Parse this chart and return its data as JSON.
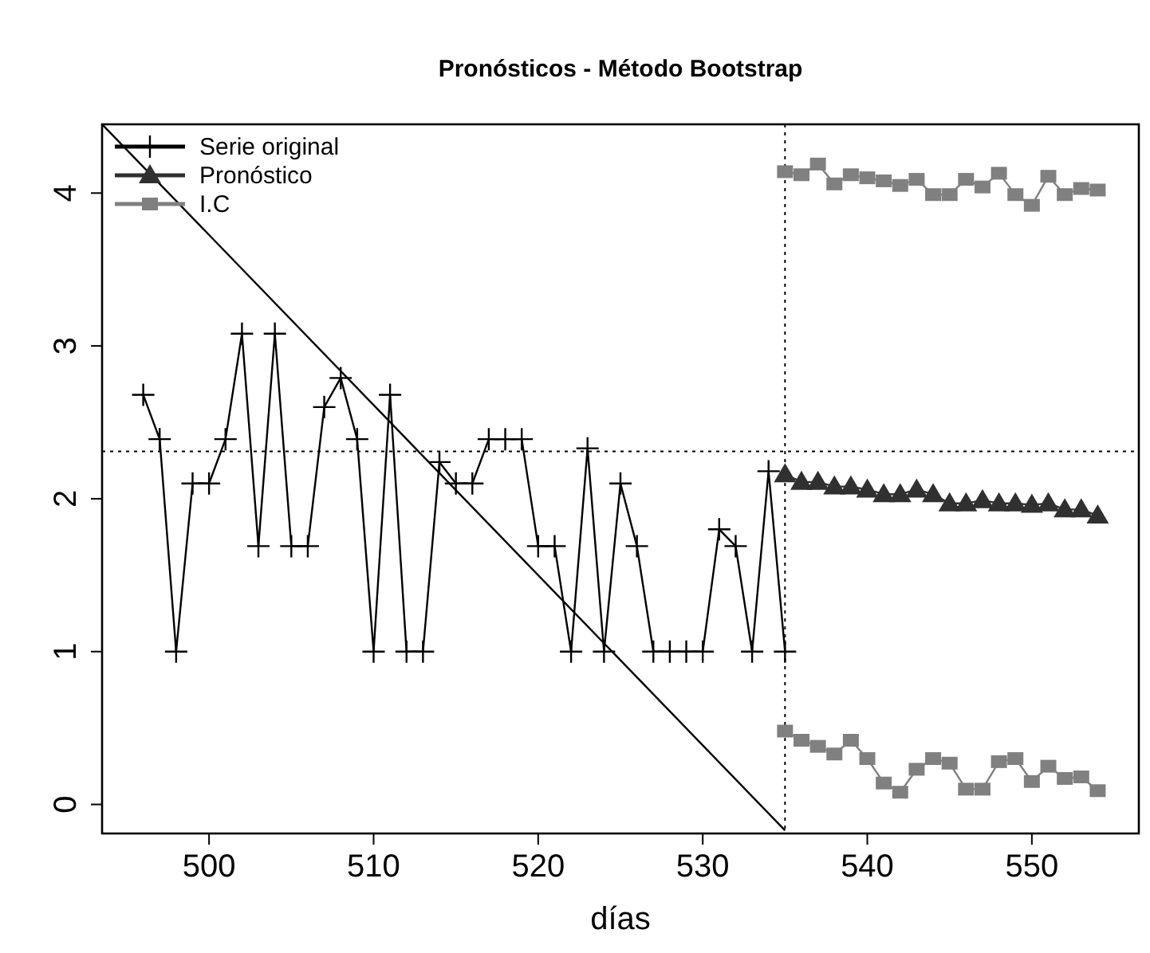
{
  "chart_data": {
    "type": "line",
    "title": "Pronósticos - Método Bootstrap",
    "xlabel": "días",
    "xlim": [
      493.5,
      556.5
    ],
    "ylim": [
      -0.19,
      4.45
    ],
    "xticks": [
      500,
      510,
      520,
      530,
      540,
      550
    ],
    "yticks": [
      0,
      1,
      2,
      3,
      4
    ],
    "grid": false,
    "legend": "top left",
    "ref_lines": [
      {
        "axis": "y",
        "value": 2.31,
        "line_style": "dotted",
        "color": "#000000"
      },
      {
        "axis": "x",
        "value": 535,
        "line_style": "dotted",
        "color": "#000000"
      }
    ],
    "series": [
      {
        "name": "Serie original",
        "color": "#000000",
        "marker": "cross",
        "x": [
          496,
          497,
          498,
          499,
          500,
          501,
          502,
          503,
          504,
          505,
          506,
          507,
          508,
          509,
          510,
          511,
          512,
          513,
          514,
          515,
          516,
          517,
          518,
          519,
          520,
          521,
          522,
          523,
          524,
          525,
          526,
          527,
          528,
          529,
          530,
          531,
          532,
          533,
          534,
          535
        ],
        "values": [
          2.68,
          2.39,
          1.0,
          2.1,
          2.1,
          2.39,
          3.08,
          1.69,
          3.08,
          1.69,
          1.69,
          2.6,
          2.79,
          2.39,
          1.0,
          2.68,
          1.0,
          1.0,
          2.24,
          2.1,
          2.1,
          2.39,
          2.39,
          2.39,
          1.69,
          1.69,
          1.0,
          2.33,
          1.0,
          2.1,
          1.69,
          1.0,
          1.0,
          1.0,
          1.0,
          1.8,
          1.69,
          1.0,
          2.18,
          1.0
        ]
      },
      {
        "name": "Pronóstico",
        "color": "#303030",
        "marker": "triangle",
        "x": [
          535,
          536,
          537,
          538,
          539,
          540,
          541,
          542,
          543,
          544,
          545,
          546,
          547,
          548,
          549,
          550,
          551,
          552,
          553,
          554
        ],
        "values": [
          2.16,
          2.11,
          2.11,
          2.08,
          2.08,
          2.06,
          2.03,
          2.03,
          2.06,
          2.03,
          1.97,
          1.97,
          1.99,
          1.97,
          1.97,
          1.96,
          1.97,
          1.93,
          1.93,
          1.89
        ]
      },
      {
        "name": "I.C",
        "color": "#808080",
        "marker": "square",
        "x": [
          535,
          536,
          537,
          538,
          539,
          540,
          541,
          542,
          543,
          544,
          545,
          546,
          547,
          548,
          549,
          550,
          551,
          552,
          553,
          554
        ],
        "values": [
          4.14,
          4.12,
          4.19,
          4.06,
          4.12,
          4.1,
          4.08,
          4.05,
          4.09,
          3.99,
          3.99,
          4.09,
          4.04,
          4.13,
          3.99,
          3.92,
          4.11,
          3.99,
          4.03,
          4.02
        ]
      },
      {
        "color": "#808080",
        "marker": "square",
        "x": [
          535,
          536,
          537,
          538,
          539,
          540,
          541,
          542,
          543,
          544,
          545,
          546,
          547,
          548,
          549,
          550,
          551,
          552,
          553,
          554
        ],
        "values": [
          0.48,
          0.42,
          0.38,
          0.33,
          0.42,
          0.3,
          0.14,
          0.08,
          0.23,
          0.3,
          0.27,
          0.1,
          0.1,
          0.28,
          0.3,
          0.15,
          0.25,
          0.17,
          0.18,
          0.09
        ]
      },
      {
        "type": "line",
        "color": "#000000",
        "marker": "none",
        "x": [
          493.5,
          535
        ],
        "values": [
          4.45,
          -0.17
        ]
      }
    ]
  }
}
